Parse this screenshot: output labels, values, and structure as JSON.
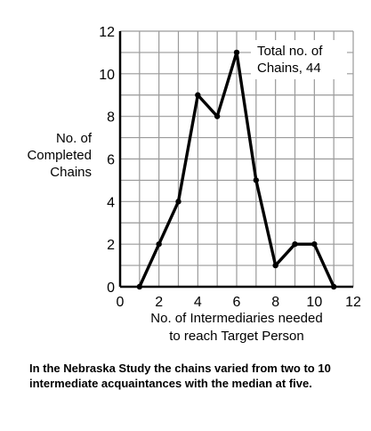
{
  "chart_data": {
    "type": "line",
    "x": [
      1,
      2,
      3,
      4,
      5,
      6,
      7,
      8,
      9,
      10,
      11
    ],
    "series": [
      {
        "values": [
          0,
          2,
          4,
          9,
          8,
          11,
          5,
          1,
          2,
          2,
          0
        ]
      }
    ],
    "xlim": [
      0,
      12
    ],
    "ylim": [
      0,
      12
    ],
    "x_ticks": [
      "0",
      "2",
      "4",
      "6",
      "8",
      "10",
      "12"
    ],
    "y_ticks": [
      "0",
      "2",
      "4",
      "6",
      "8",
      "10",
      "12"
    ],
    "ylabel_lines": [
      "No. of",
      "Completed",
      "Chains"
    ],
    "xlabel_lines": [
      "No. of Intermediaries needed",
      "to reach Target Person"
    ],
    "annotation_lines": [
      "Total no. of",
      "Chains, 44"
    ],
    "grid": true,
    "line_color": "#000000",
    "grid_color": "#9a9a9a"
  },
  "caption": "In the Nebraska Study the chains varied from two to 10 intermediate acquaintances with the median at five."
}
